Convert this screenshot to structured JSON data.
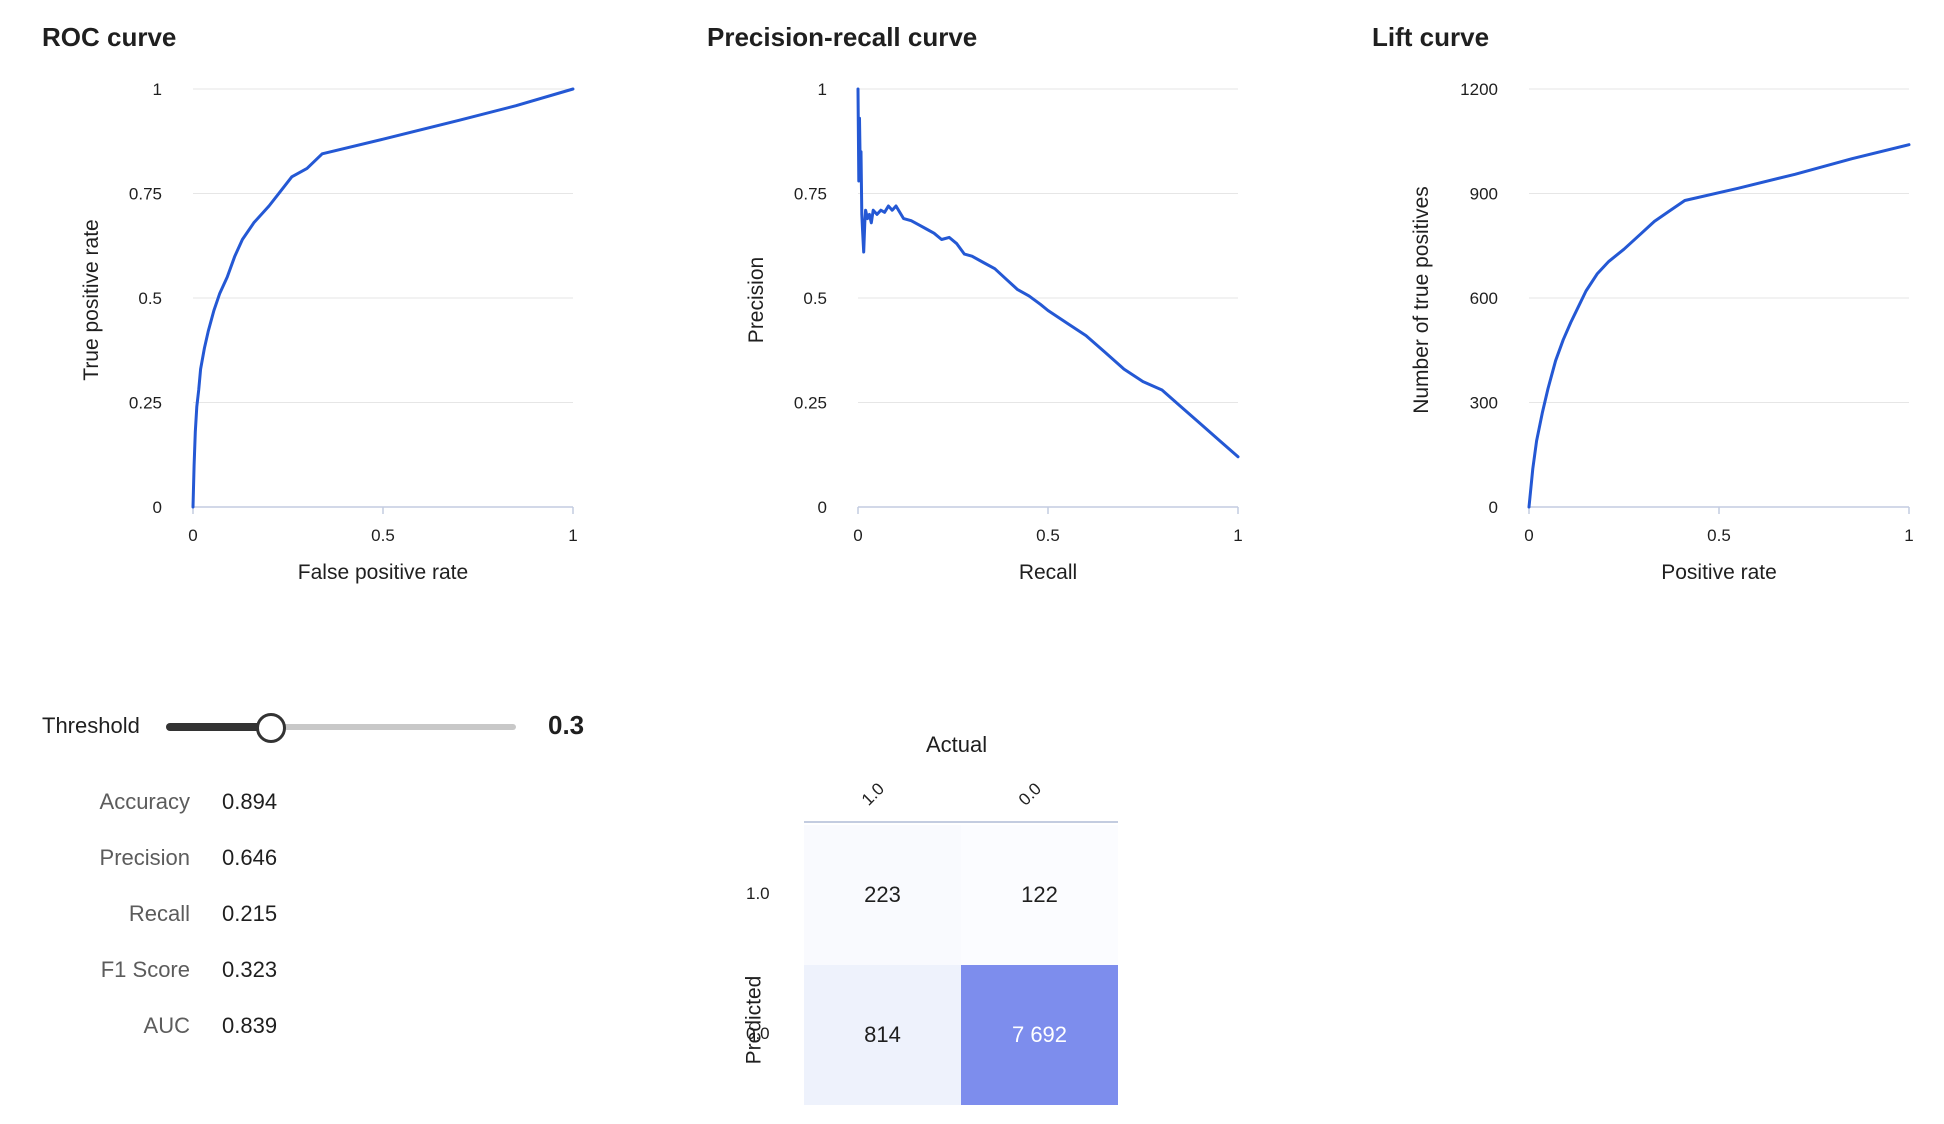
{
  "chart_data": [
    {
      "type": "line",
      "title": "ROC curve",
      "xlabel": "False positive rate",
      "ylabel": "True positive rate",
      "xlim": [
        0,
        1
      ],
      "ylim": [
        0,
        1
      ],
      "xticks": [
        "0",
        "0.5",
        "1"
      ],
      "yticks": [
        "0",
        "0.25",
        "0.5",
        "0.75",
        "1"
      ],
      "grid": "horizontal",
      "color": "#2458d4",
      "series": [
        {
          "x": [
            0,
            0.003,
            0.006,
            0.01,
            0.015,
            0.02,
            0.03,
            0.04,
            0.055,
            0.07,
            0.09,
            0.11,
            0.13,
            0.16,
            0.2,
            0.23,
            0.26,
            0.3,
            0.34,
            0.5,
            0.7,
            0.85,
            1.0
          ],
          "y": [
            0,
            0.1,
            0.18,
            0.24,
            0.28,
            0.33,
            0.38,
            0.42,
            0.47,
            0.51,
            0.55,
            0.6,
            0.64,
            0.68,
            0.72,
            0.755,
            0.79,
            0.81,
            0.845,
            0.88,
            0.925,
            0.96,
            1.0
          ]
        }
      ]
    },
    {
      "type": "line",
      "title": "Precision-recall curve",
      "xlabel": "Recall",
      "ylabel": "Precision",
      "xlim": [
        0,
        1
      ],
      "ylim": [
        0,
        1
      ],
      "xticks": [
        "0",
        "0.5",
        "1"
      ],
      "yticks": [
        "0",
        "0.25",
        "0.5",
        "0.75",
        "1"
      ],
      "grid": "horizontal",
      "color": "#2458d4",
      "series": [
        {
          "x": [
            0.0,
            0.002,
            0.004,
            0.006,
            0.008,
            0.01,
            0.012,
            0.015,
            0.018,
            0.02,
            0.025,
            0.03,
            0.035,
            0.04,
            0.05,
            0.06,
            0.07,
            0.08,
            0.09,
            0.1,
            0.12,
            0.14,
            0.16,
            0.18,
            0.2,
            0.22,
            0.24,
            0.26,
            0.28,
            0.3,
            0.33,
            0.36,
            0.39,
            0.42,
            0.45,
            0.48,
            0.5,
            0.55,
            0.6,
            0.65,
            0.7,
            0.75,
            0.8,
            0.85,
            0.9,
            0.95,
            1.0
          ],
          "y": [
            1.0,
            0.78,
            0.93,
            0.8,
            0.85,
            0.7,
            0.66,
            0.61,
            0.68,
            0.71,
            0.69,
            0.7,
            0.68,
            0.71,
            0.7,
            0.71,
            0.705,
            0.72,
            0.71,
            0.72,
            0.69,
            0.685,
            0.675,
            0.665,
            0.655,
            0.64,
            0.645,
            0.63,
            0.605,
            0.6,
            0.585,
            0.57,
            0.545,
            0.52,
            0.505,
            0.485,
            0.47,
            0.44,
            0.41,
            0.37,
            0.33,
            0.3,
            0.28,
            0.24,
            0.2,
            0.16,
            0.12
          ]
        }
      ]
    },
    {
      "type": "line",
      "title": "Lift curve",
      "xlabel": "Positive rate",
      "ylabel": "Number of true positives",
      "xlim": [
        0,
        1
      ],
      "ylim": [
        0,
        1200
      ],
      "xticks": [
        "0",
        "0.5",
        "1"
      ],
      "yticks": [
        "0",
        "300",
        "600",
        "900",
        "1200"
      ],
      "grid": "horizontal",
      "color": "#2458d4",
      "series": [
        {
          "x": [
            0,
            0.01,
            0.02,
            0.035,
            0.05,
            0.07,
            0.09,
            0.11,
            0.13,
            0.15,
            0.18,
            0.21,
            0.25,
            0.29,
            0.33,
            0.37,
            0.41,
            0.55,
            0.7,
            0.85,
            1.0
          ],
          "y": [
            0,
            110,
            190,
            270,
            340,
            420,
            480,
            530,
            575,
            620,
            670,
            705,
            740,
            780,
            820,
            850,
            880,
            915,
            955,
            1000,
            1040
          ]
        }
      ]
    }
  ],
  "threshold": {
    "label": "Threshold",
    "value": 0.3,
    "display": "0.3"
  },
  "metrics": [
    {
      "name": "Accuracy",
      "value": "0.894"
    },
    {
      "name": "Precision",
      "value": "0.646"
    },
    {
      "name": "Recall",
      "value": "0.215"
    },
    {
      "name": "F1 Score",
      "value": "0.323"
    },
    {
      "name": "AUC",
      "value": "0.839"
    }
  ],
  "confusion_matrix": {
    "x_title": "Actual",
    "y_title": "Predicted",
    "columns": [
      "1.0",
      "0.0"
    ],
    "rows": [
      "1.0",
      "0.0"
    ],
    "cells": [
      [
        {
          "value": "223",
          "bg": "#f9fafe",
          "fg": "#1f1f1f"
        },
        {
          "value": "122",
          "bg": "#fbfcff",
          "fg": "#1f1f1f"
        }
      ],
      [
        {
          "value": "814",
          "bg": "#eef2fc",
          "fg": "#1f1f1f"
        },
        {
          "value": "7 692",
          "bg": "#7d8ded",
          "fg": "#ffffff"
        }
      ]
    ]
  }
}
